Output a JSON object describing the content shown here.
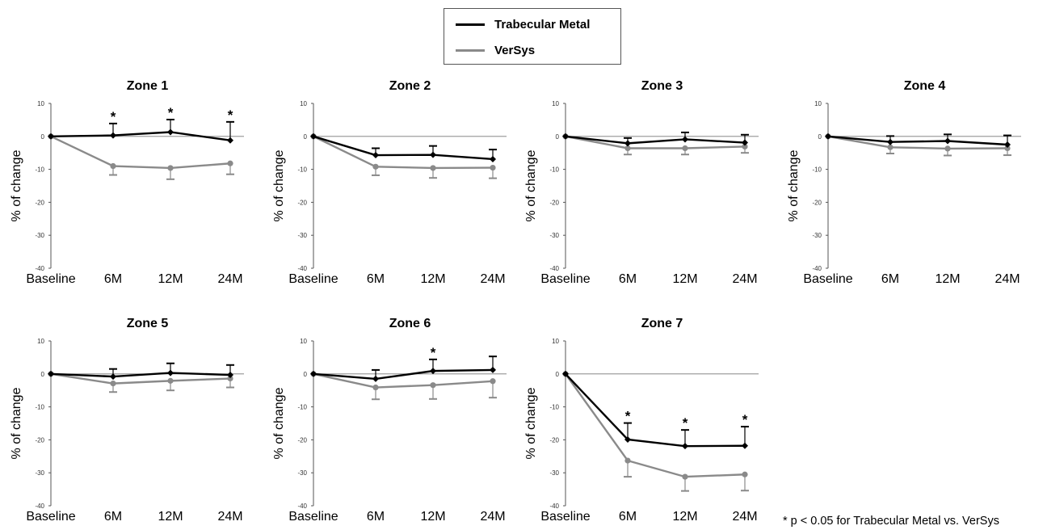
{
  "legend": {
    "items": [
      {
        "label": "Trabecular Metal",
        "color": "#000000"
      },
      {
        "label": "VerSys",
        "color": "#8a8a8a"
      }
    ]
  },
  "footnote": "* p < 0.05 for Trabecular Metal vs. VerSys",
  "chart_data": [
    {
      "type": "line",
      "title": "Zone 1",
      "ylabel": "% of change",
      "ylim": [
        -40,
        10
      ],
      "yticks": [
        10,
        0,
        -10,
        -20,
        -30,
        -40
      ],
      "categories": [
        "Baseline",
        "6M",
        "12M",
        "24M"
      ],
      "series": [
        {
          "name": "Trabecular Metal",
          "color": "#000000",
          "values": [
            0,
            0.3,
            1.3,
            -1.2
          ],
          "err": [
            0,
            3.6,
            3.8,
            5.6
          ]
        },
        {
          "name": "VerSys",
          "color": "#8a8a8a",
          "values": [
            0,
            -9.0,
            -9.6,
            -8.2
          ],
          "err": [
            0,
            2.7,
            3.4,
            3.3
          ]
        }
      ],
      "significant": [
        1,
        2,
        3
      ],
      "significance_marker": "*"
    },
    {
      "type": "line",
      "title": "Zone 2",
      "ylabel": "% of change",
      "ylim": [
        -40,
        10
      ],
      "yticks": [
        10,
        0,
        -10,
        -20,
        -30,
        -40
      ],
      "categories": [
        "Baseline",
        "6M",
        "12M",
        "24M"
      ],
      "series": [
        {
          "name": "Trabecular Metal",
          "color": "#000000",
          "values": [
            0,
            -5.7,
            -5.6,
            -6.9
          ],
          "err": [
            0,
            2.1,
            2.7,
            2.9
          ]
        },
        {
          "name": "VerSys",
          "color": "#8a8a8a",
          "values": [
            0,
            -9.2,
            -9.6,
            -9.5
          ],
          "err": [
            0,
            2.6,
            3.0,
            3.2
          ]
        }
      ],
      "significant": [],
      "significance_marker": "*"
    },
    {
      "type": "line",
      "title": "Zone 3",
      "ylabel": "% of change",
      "ylim": [
        -40,
        10
      ],
      "yticks": [
        10,
        0,
        -10,
        -20,
        -30,
        -40
      ],
      "categories": [
        "Baseline",
        "6M",
        "12M",
        "24M"
      ],
      "series": [
        {
          "name": "Trabecular Metal",
          "color": "#000000",
          "values": [
            0,
            -2.1,
            -0.9,
            -1.9
          ],
          "err": [
            0,
            1.6,
            2.1,
            2.4
          ]
        },
        {
          "name": "VerSys",
          "color": "#8a8a8a",
          "values": [
            0,
            -3.6,
            -3.6,
            -3.1
          ],
          "err": [
            0,
            1.9,
            1.9,
            1.9
          ]
        }
      ],
      "significant": [],
      "significance_marker": "*"
    },
    {
      "type": "line",
      "title": "Zone 4",
      "ylabel": "% of change",
      "ylim": [
        -40,
        10
      ],
      "yticks": [
        10,
        0,
        -10,
        -20,
        -30,
        -40
      ],
      "categories": [
        "Baseline",
        "6M",
        "12M",
        "24M"
      ],
      "series": [
        {
          "name": "Trabecular Metal",
          "color": "#000000",
          "values": [
            0,
            -1.7,
            -1.4,
            -2.5
          ],
          "err": [
            0,
            1.8,
            2.0,
            2.8
          ]
        },
        {
          "name": "VerSys",
          "color": "#8a8a8a",
          "values": [
            0,
            -3.3,
            -3.7,
            -3.6
          ],
          "err": [
            0,
            1.9,
            2.1,
            2.1
          ]
        }
      ],
      "significant": [],
      "significance_marker": "*"
    },
    {
      "type": "line",
      "title": "Zone 5",
      "ylabel": "% of change",
      "ylim": [
        -40,
        10
      ],
      "yticks": [
        10,
        0,
        -10,
        -20,
        -30,
        -40
      ],
      "categories": [
        "Baseline",
        "6M",
        "12M",
        "24M"
      ],
      "series": [
        {
          "name": "Trabecular Metal",
          "color": "#000000",
          "values": [
            0,
            -0.8,
            0.3,
            -0.3
          ],
          "err": [
            0,
            2.3,
            2.9,
            3.0
          ]
        },
        {
          "name": "VerSys",
          "color": "#8a8a8a",
          "values": [
            0,
            -2.9,
            -2.1,
            -1.4
          ],
          "err": [
            0,
            2.6,
            2.9,
            2.7
          ]
        }
      ],
      "significant": [],
      "significance_marker": "*"
    },
    {
      "type": "line",
      "title": "Zone 6",
      "ylabel": "% of change",
      "ylim": [
        -40,
        10
      ],
      "yticks": [
        10,
        0,
        -10,
        -20,
        -30,
        -40
      ],
      "categories": [
        "Baseline",
        "6M",
        "12M",
        "24M"
      ],
      "series": [
        {
          "name": "Trabecular Metal",
          "color": "#000000",
          "values": [
            0,
            -1.5,
            0.9,
            1.2
          ],
          "err": [
            0,
            2.7,
            3.5,
            4.1
          ]
        },
        {
          "name": "VerSys",
          "color": "#8a8a8a",
          "values": [
            0,
            -4.1,
            -3.4,
            -2.2
          ],
          "err": [
            0,
            3.6,
            4.2,
            5.0
          ]
        }
      ],
      "significant": [
        2
      ],
      "significance_marker": "*"
    },
    {
      "type": "line",
      "title": "Zone 7",
      "ylabel": "% of change",
      "ylim": [
        -40,
        10
      ],
      "yticks": [
        10,
        0,
        -10,
        -20,
        -30,
        -40
      ],
      "categories": [
        "Baseline",
        "6M",
        "12M",
        "24M"
      ],
      "series": [
        {
          "name": "Trabecular Metal",
          "color": "#000000",
          "values": [
            0,
            -19.9,
            -21.9,
            -21.8
          ],
          "err": [
            0,
            5.0,
            4.9,
            5.8
          ]
        },
        {
          "name": "VerSys",
          "color": "#8a8a8a",
          "values": [
            0,
            -26.3,
            -31.2,
            -30.5
          ],
          "err": [
            0,
            4.9,
            4.3,
            4.9
          ]
        }
      ],
      "significant": [
        1,
        2,
        3
      ],
      "significance_marker": "*"
    }
  ]
}
